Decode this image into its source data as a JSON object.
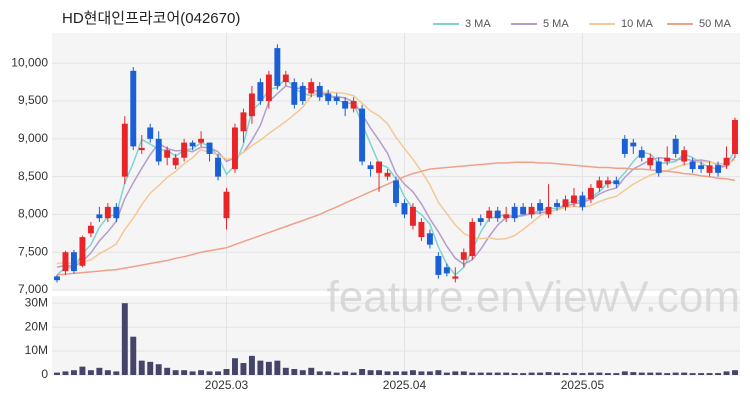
{
  "chart_data": {
    "type": "candlestick",
    "title": "HD현대인프라코어(042670)",
    "watermark": "feature.enViewV.com",
    "categories": [
      null,
      null,
      null,
      null,
      null,
      null,
      null,
      null,
      null,
      null,
      null,
      null,
      null,
      null,
      null,
      null,
      null,
      null,
      null,
      null,
      "2025.03",
      null,
      null,
      null,
      null,
      null,
      null,
      null,
      null,
      null,
      null,
      null,
      null,
      null,
      null,
      null,
      null,
      null,
      null,
      null,
      null,
      "2025.04",
      null,
      null,
      null,
      null,
      null,
      null,
      null,
      null,
      null,
      null,
      null,
      null,
      null,
      null,
      null,
      null,
      null,
      null,
      null,
      null,
      "2025.05",
      null,
      null,
      null,
      null,
      null,
      null,
      null,
      null,
      null,
      null,
      null,
      null,
      null,
      null,
      null,
      null,
      null,
      null
    ],
    "open": [
      7180,
      7250,
      7500,
      7320,
      7750,
      8000,
      7950,
      8100,
      8500,
      9900,
      8850,
      9150,
      9000,
      8750,
      8650,
      8750,
      8950,
      8950,
      8950,
      8750,
      7950,
      8600,
      9100,
      9300,
      9750,
      9500,
      10200,
      9750,
      9750,
      9700,
      9600,
      9700,
      9600,
      9550,
      9500,
      9400,
      9400,
      8650,
      8550,
      8500,
      8450,
      8150,
      7850,
      7700,
      7750,
      7450,
      7300,
      7150,
      7400,
      7450,
      7950,
      7950,
      8050,
      7950,
      8100,
      8100,
      8000,
      8150,
      8000,
      8150,
      8100,
      8150,
      8250,
      8200,
      8350,
      8400,
      8450,
      9000,
      8950,
      8850,
      8650,
      8700,
      8700,
      9000,
      8700,
      8700,
      8650,
      8550,
      8650,
      8650,
      8800
    ],
    "high": [
      7200,
      7520,
      7530,
      7720,
      7900,
      8100,
      8150,
      8150,
      9300,
      9950,
      9050,
      9200,
      9100,
      8900,
      8800,
      9000,
      8980,
      9100,
      8950,
      8800,
      8350,
      9200,
      9400,
      9700,
      9800,
      9900,
      10250,
      9900,
      9800,
      9750,
      9800,
      9750,
      9650,
      9600,
      9550,
      9550,
      9450,
      8700,
      8700,
      8600,
      8500,
      8200,
      8150,
      7950,
      7800,
      7500,
      7350,
      7300,
      7550,
      7950,
      8000,
      8100,
      8100,
      8100,
      8150,
      8150,
      8150,
      8200,
      8400,
      8200,
      8250,
      8350,
      8300,
      8400,
      8500,
      8500,
      8500,
      9050,
      9000,
      8900,
      8800,
      8750,
      8900,
      9050,
      8900,
      8750,
      8700,
      8700,
      8700,
      8900,
      9280
    ],
    "low": [
      7100,
      7200,
      7220,
      7300,
      7700,
      7900,
      7900,
      7900,
      8400,
      8850,
      8800,
      8950,
      8650,
      8650,
      8600,
      8700,
      8850,
      8900,
      8700,
      8450,
      7800,
      8550,
      8950,
      9200,
      9450,
      9400,
      9650,
      9700,
      9400,
      9450,
      9550,
      9500,
      9450,
      9450,
      9300,
      9350,
      8650,
      8500,
      8300,
      8450,
      8100,
      7950,
      7800,
      7650,
      7550,
      7150,
      7180,
      7100,
      7300,
      7400,
      7850,
      7900,
      7900,
      7900,
      7900,
      8000,
      7950,
      8000,
      7950,
      8050,
      8050,
      8100,
      8050,
      8150,
      8300,
      8350,
      8350,
      8750,
      8800,
      8700,
      8600,
      8500,
      8650,
      8750,
      8650,
      8550,
      8550,
      8500,
      8500,
      8600,
      8750
    ],
    "close": [
      7130,
      7500,
      7250,
      7700,
      7850,
      7950,
      8100,
      7950,
      9200,
      8900,
      8880,
      9000,
      8700,
      8850,
      8750,
      8950,
      8900,
      9000,
      8800,
      8500,
      8300,
      9150,
      9350,
      9600,
      9500,
      9850,
      9700,
      9850,
      9450,
      9500,
      9750,
      9550,
      9500,
      9500,
      9400,
      9500,
      8700,
      8600,
      8700,
      8550,
      8150,
      8000,
      8100,
      7900,
      7600,
      7200,
      7220,
      7180,
      7500,
      7900,
      7900,
      8050,
      7950,
      8000,
      7950,
      8000,
      8100,
      8050,
      8100,
      8100,
      8200,
      8250,
      8100,
      8350,
      8450,
      8450,
      8400,
      8800,
      8900,
      8750,
      8750,
      8550,
      8750,
      8800,
      8850,
      8600,
      8600,
      8650,
      8550,
      8750,
      9250
    ],
    "up_color": "#e8262a",
    "down_color": "#1a5fd6",
    "ylim": [
      7000,
      10400
    ],
    "yticks": [
      {
        "value": 7000,
        "label": "7,000"
      },
      {
        "value": 7500,
        "label": "7,500"
      },
      {
        "value": 8000,
        "label": "8,000"
      },
      {
        "value": 8500,
        "label": "8,500"
      },
      {
        "value": 9000,
        "label": "9,000"
      },
      {
        "value": 9500,
        "label": "9,500"
      },
      {
        "value": 10000,
        "label": "10,000"
      }
    ],
    "grid": true,
    "legend": "top-right",
    "series": [
      {
        "name": "3 MA",
        "color": "#7fd3d3",
        "values": [
          7200,
          7300,
          7290,
          7480,
          7600,
          7830,
          7970,
          8000,
          8420,
          8680,
          8990,
          8930,
          8860,
          8850,
          8770,
          8850,
          8870,
          8950,
          8900,
          8770,
          8530,
          8650,
          8930,
          9370,
          9480,
          9650,
          9680,
          9800,
          9670,
          9600,
          9570,
          9600,
          9600,
          9520,
          9470,
          9470,
          9200,
          8930,
          8670,
          8620,
          8470,
          8230,
          8080,
          8000,
          7870,
          7570,
          7340,
          7200,
          7300,
          7530,
          7770,
          7950,
          7970,
          8000,
          7970,
          7980,
          8020,
          8050,
          8080,
          8080,
          8130,
          8180,
          8180,
          8230,
          8300,
          8420,
          8430,
          8550,
          8700,
          8820,
          8800,
          8680,
          8680,
          8700,
          8800,
          8750,
          8680,
          8620,
          8600,
          8650,
          8850
        ]
      },
      {
        "name": "5 MA",
        "color": "#b39dcc",
        "values": [
          7300,
          7330,
          7310,
          7380,
          7490,
          7650,
          7770,
          7910,
          8210,
          8420,
          8610,
          8790,
          8940,
          8870,
          8840,
          8850,
          8830,
          8890,
          8880,
          8830,
          8700,
          8750,
          8820,
          8980,
          9180,
          9490,
          9600,
          9700,
          9670,
          9670,
          9650,
          9620,
          9550,
          9560,
          9540,
          9490,
          9320,
          9140,
          8980,
          8810,
          8540,
          8400,
          8300,
          8140,
          7940,
          7770,
          7580,
          7420,
          7340,
          7400,
          7540,
          7710,
          7860,
          7960,
          7970,
          7990,
          8010,
          8020,
          8040,
          8060,
          8110,
          8140,
          8160,
          8200,
          8270,
          8320,
          8350,
          8490,
          8600,
          8660,
          8720,
          8750,
          8740,
          8720,
          8740,
          8710,
          8720,
          8700,
          8650,
          8630,
          8760
        ]
      },
      {
        "name": "10 MA",
        "color": "#f3c995",
        "values": [
          7350,
          7360,
          7350,
          7370,
          7400,
          7480,
          7540,
          7610,
          7800,
          7950,
          8130,
          8280,
          8380,
          8490,
          8570,
          8670,
          8750,
          8860,
          8820,
          8790,
          8730,
          8750,
          8820,
          8910,
          8980,
          9070,
          9150,
          9230,
          9320,
          9420,
          9570,
          9610,
          9620,
          9610,
          9600,
          9570,
          9470,
          9370,
          9300,
          9200,
          9020,
          8870,
          8730,
          8570,
          8390,
          8160,
          8010,
          7860,
          7750,
          7690,
          7680,
          7690,
          7670,
          7680,
          7720,
          7800,
          7890,
          7980,
          8040,
          8060,
          8090,
          8110,
          8090,
          8120,
          8170,
          8210,
          8240,
          8320,
          8400,
          8460,
          8520,
          8550,
          8580,
          8620,
          8660,
          8680,
          8700,
          8690,
          8670,
          8670,
          8720
        ]
      },
      {
        "name": "50 MA",
        "color": "#f0a08a",
        "values": [
          7200,
          7210,
          7220,
          7230,
          7240,
          7250,
          7260,
          7270,
          7290,
          7310,
          7330,
          7350,
          7370,
          7390,
          7420,
          7440,
          7470,
          7500,
          7520,
          7540,
          7560,
          7600,
          7640,
          7680,
          7720,
          7760,
          7800,
          7840,
          7880,
          7920,
          7960,
          8000,
          8050,
          8100,
          8150,
          8200,
          8250,
          8300,
          8350,
          8400,
          8450,
          8500,
          8540,
          8570,
          8600,
          8610,
          8620,
          8630,
          8640,
          8650,
          8660,
          8670,
          8680,
          8680,
          8690,
          8690,
          8690,
          8680,
          8680,
          8670,
          8660,
          8650,
          8640,
          8630,
          8620,
          8620,
          8610,
          8610,
          8600,
          8600,
          8590,
          8580,
          8570,
          8560,
          8540,
          8530,
          8510,
          8500,
          8480,
          8470,
          8450
        ]
      }
    ],
    "volume": {
      "color": "#45456a",
      "values": [
        1000000,
        1500000,
        2000000,
        3500000,
        2000000,
        3000000,
        2000000,
        1500000,
        30000000,
        16000000,
        6000000,
        5500000,
        4500000,
        3000000,
        2000000,
        2000000,
        1500000,
        2000000,
        1500000,
        1500000,
        2500000,
        7000000,
        5000000,
        8000000,
        6000000,
        5500000,
        6000000,
        3000000,
        2500000,
        2000000,
        3000000,
        1500000,
        1500000,
        1000000,
        1500000,
        1000000,
        2500000,
        2000000,
        2000000,
        1500000,
        1500000,
        1500000,
        2000000,
        1500000,
        1500000,
        2000000,
        1000000,
        1500000,
        1500000,
        1000000,
        1000000,
        1000000,
        1000000,
        1000000,
        800000,
        800000,
        1000000,
        1000000,
        1200000,
        1000000,
        800000,
        1000000,
        800000,
        1000000,
        1000000,
        800000,
        800000,
        1500000,
        1200000,
        1000000,
        1000000,
        1000000,
        800000,
        1000000,
        1000000,
        800000,
        800000,
        800000,
        800000,
        1500000,
        2000000
      ],
      "ylim": [
        0,
        33000000
      ],
      "yticks": [
        0,
        {
          "value": 10000000,
          "label": "10M"
        },
        {
          "value": 20000000,
          "label": "20M"
        },
        {
          "value": 30000000,
          "label": "30M"
        }
      ]
    }
  }
}
